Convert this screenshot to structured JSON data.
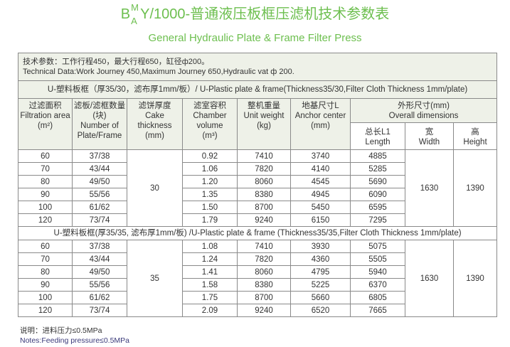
{
  "title": {
    "b": "B",
    "m": "M",
    "a": "A",
    "rest": "Y/1000-普通液压板框压滤机技术参数表",
    "subtitle": "General Hydraulic Plate & Frame Filter Press"
  },
  "tech": {
    "cn": "技术参数：工作行程450，最大行程650，缸径ф200。",
    "en": "Technical Data:Work Journey 450,Maximum Journey 650,Hydraulic vat ф 200."
  },
  "headers": {
    "area": [
      "过滤面积",
      "Filtration area",
      "(m²)"
    ],
    "plates": [
      "滤板/滤框数量(块)",
      "Number of Plate/Frame"
    ],
    "cake": [
      "滤饼厚度",
      "Cake thickness",
      "(mm)"
    ],
    "chamber": [
      "滤室容积",
      "Chamber volume",
      "(m³)"
    ],
    "weight": [
      "整机重量",
      "Unit weight",
      "(kg)"
    ],
    "anchor": [
      "地基尺寸L",
      "Anchor center",
      "(mm)"
    ],
    "overall": [
      "外形尺寸(mm)",
      "Overall  dimensions"
    ],
    "length": [
      "总长L1",
      "Length"
    ],
    "width": [
      "宽",
      "Width"
    ],
    "height": [
      "高",
      "Height"
    ]
  },
  "sections": [
    {
      "label": "U-塑料板框（厚35/30，滤布厚1mm/板）/ U-Plastic plate & frame(Thickness35/30,Filter Cloth Thickness 1mm/plate)",
      "cake": "30",
      "width": "1630",
      "height": "1390",
      "rows": [
        [
          "60",
          "37/38",
          "0.92",
          "7410",
          "3740",
          "4885"
        ],
        [
          "70",
          "43/44",
          "1.06",
          "7820",
          "4140",
          "5285"
        ],
        [
          "80",
          "49/50",
          "1.20",
          "8060",
          "4545",
          "5690"
        ],
        [
          "90",
          "55/56",
          "1.35",
          "8380",
          "4945",
          "6090"
        ],
        [
          "100",
          "61/62",
          "1.50",
          "8700",
          "5450",
          "6595"
        ],
        [
          "120",
          "73/74",
          "1.79",
          "9240",
          "6150",
          "7295"
        ]
      ]
    },
    {
      "label": "U-塑料板框(厚35/35, 滤布厚1mm/板) /U-Plastic plate & frame (Thickness35/35,Filter Cloth Thickness 1mm/plate)",
      "cake": "35",
      "width": "1630",
      "height": "1390",
      "rows": [
        [
          "60",
          "37/38",
          "1.08",
          "7410",
          "3930",
          "5075"
        ],
        [
          "70",
          "43/44",
          "1.24",
          "7820",
          "4360",
          "5505"
        ],
        [
          "80",
          "49/50",
          "1.41",
          "8060",
          "4795",
          "5940"
        ],
        [
          "90",
          "55/56",
          "1.58",
          "8380",
          "5225",
          "6370"
        ],
        [
          "100",
          "61/62",
          "1.75",
          "8700",
          "5660",
          "6805"
        ],
        [
          "120",
          "73/74",
          "2.09",
          "9240",
          "6520",
          "7665"
        ]
      ]
    }
  ],
  "notes": {
    "cn": "说明：进料压力≤0.5MPa",
    "en": "Notes:Feeding pressure≤0.5MPa"
  }
}
